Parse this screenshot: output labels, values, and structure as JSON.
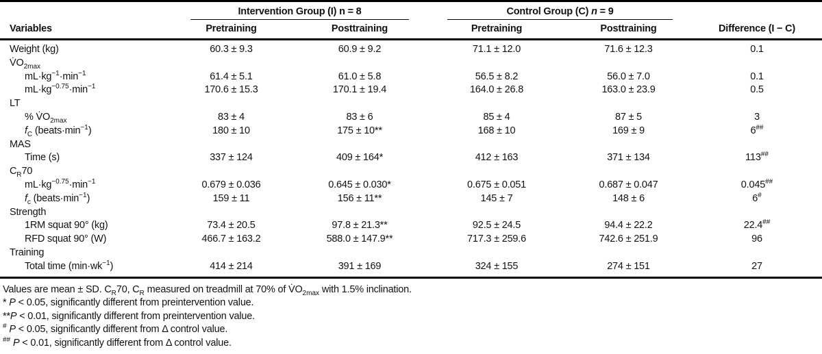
{
  "table": {
    "group_headers": {
      "intervention": "Intervention Group (I) n = 8",
      "control": "Control Group (C) <i>n</i> = 9"
    },
    "headers": {
      "variables": "Variables",
      "pre_i": "Pretraining",
      "post_i": "Posttraining",
      "pre_c": "Pretraining",
      "post_c": "Posttraining",
      "difference": "Difference (I − C)"
    },
    "rows": [
      {
        "label": "Weight (kg)",
        "indent": 0,
        "cells": [
          "60.3 ± 9.3",
          "60.9 ± 9.2",
          "71.1 ± 12.0",
          "71.6 ± 12.3",
          "0.1"
        ]
      },
      {
        "label": "V̇O<sub>2max</sub>",
        "indent": 0,
        "cells": null
      },
      {
        "label": "mL·kg<sup>−1</sup>·min<sup>−1</sup>",
        "indent": 1,
        "cells": [
          "61.4 ± 5.1",
          "61.0 ± 5.8",
          "56.5 ± 8.2",
          "56.0 ± 7.0",
          "0.1"
        ]
      },
      {
        "label": "mL·kg<sup>−0.75</sup>·min<sup>−1</sup>",
        "indent": 1,
        "cells": [
          "170.6 ± 15.3",
          "170.1 ± 19.4",
          "164.0 ± 26.8",
          "163.0 ± 23.9",
          "0.5"
        ]
      },
      {
        "label": "LT",
        "indent": 0,
        "cells": null
      },
      {
        "label": "% V̇O<sub>2max</sub>",
        "indent": 1,
        "cells": [
          "83 ± 4",
          "83 ± 6",
          "85 ± 4",
          "87 ± 5",
          "3"
        ]
      },
      {
        "label": "<i>f</i><sub>C</sub> (beats·min<sup>−1</sup>)",
        "indent": 1,
        "cells": [
          "180 ± 10",
          "175 ± 10**",
          "168 ± 10",
          "169 ± 9",
          "6<sup>##</sup>"
        ]
      },
      {
        "label": "MAS",
        "indent": 0,
        "cells": null
      },
      {
        "label": "Time (s)",
        "indent": 1,
        "cells": [
          "337 ± 124",
          "409 ± 164*",
          "412 ± 163",
          "371 ± 134",
          "113<sup>##</sup>"
        ]
      },
      {
        "label": "C<sub>R</sub>70",
        "indent": 0,
        "cells": null
      },
      {
        "label": "mL·kg<sup>−0.75</sup>·min<sup>−1</sup>",
        "indent": 1,
        "cells": [
          "0.679 ± 0.036",
          "0.645 ± 0.030*",
          "0.675 ± 0.051",
          "0.687 ± 0.047",
          "0.045<sup>##</sup>"
        ]
      },
      {
        "label": "<i>f</i><sub>c</sub> (beats·min<sup>−1</sup>)",
        "indent": 1,
        "cells": [
          "159 ± 11",
          "156 ± 11**",
          "145 ± 7",
          "148 ± 6",
          "6<sup>#</sup>"
        ]
      },
      {
        "label": "Strength",
        "indent": 0,
        "cells": null
      },
      {
        "label": "1RM squat 90° (kg)",
        "indent": 1,
        "cells": [
          "73.4 ± 20.5",
          "97.8 ± 21.3**",
          "92.5 ± 24.5",
          "94.4 ± 22.2",
          "22.4<sup>##</sup>"
        ]
      },
      {
        "label": "RFD squat 90° (W)",
        "indent": 1,
        "cells": [
          "466.7 ± 163.2",
          "588.0 ± 147.9**",
          "717.3 ± 259.6",
          "742.6 ± 251.9",
          "96"
        ]
      },
      {
        "label": "Training",
        "indent": 0,
        "cells": null
      },
      {
        "label": "Total time (min·wk<sup>−1</sup>)",
        "indent": 1,
        "cells": [
          "414 ± 214",
          "391 ± 169",
          "324 ± 155",
          "274 ± 151",
          "27"
        ]
      }
    ]
  },
  "footnotes": [
    "Values are mean ± SD. C<sub>R</sub>70, C<sub>R</sub> measured on treadmill at 70% of V̇O<sub>2max</sub> with 1.5% inclination.",
    "* <i>P</i> &lt; 0.05, significantly different from preintervention value.",
    "**<i>P</i> &lt; 0.01, significantly different from preintervention value.",
    "<sup>#</sup> <i>P</i> &lt; 0.05, significantly different from Δ control value.",
    "<sup>##</sup> <i>P</i> &lt; 0.01, significantly different from Δ control value."
  ]
}
